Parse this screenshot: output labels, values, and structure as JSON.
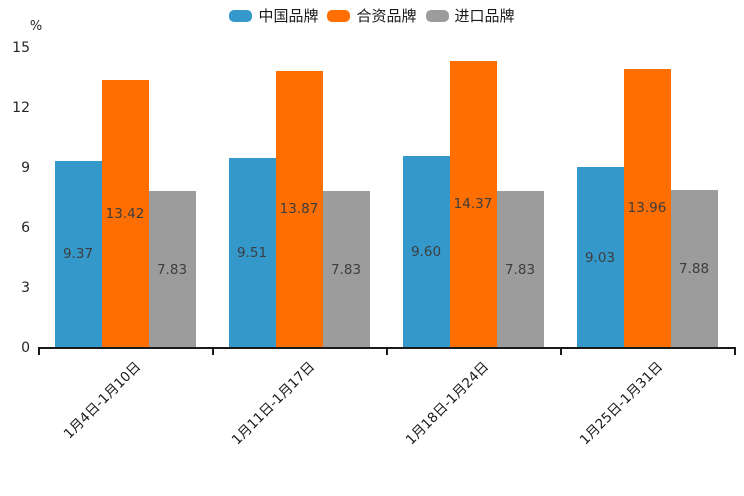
{
  "chart_data": {
    "type": "bar",
    "title": "",
    "ylabel": "%",
    "ylim": [
      0,
      15
    ],
    "yticks": [
      0,
      3,
      6,
      9,
      12,
      15
    ],
    "grid": false,
    "legend_position": "top",
    "value_labels": "inside-center",
    "value_label_decimals": 2,
    "categories": [
      "1月4日-1月10日",
      "1月11日-1月17日",
      "1月18日-1月24日",
      "1月25日-1月31日"
    ],
    "series": [
      {
        "key": "china-brand",
        "name": "中国品牌",
        "color": "#3498CB",
        "values": [
          9.37,
          9.51,
          9.6,
          9.03
        ]
      },
      {
        "key": "joint-venture-brand",
        "name": "合资品牌",
        "color": "#FF6E00",
        "values": [
          13.42,
          13.87,
          14.37,
          13.96
        ]
      },
      {
        "key": "imported-brand",
        "name": "进口品牌",
        "color": "#9C9C9C",
        "values": [
          7.83,
          7.83,
          7.83,
          7.88
        ]
      }
    ],
    "axis_color": "#1A1A1A"
  }
}
